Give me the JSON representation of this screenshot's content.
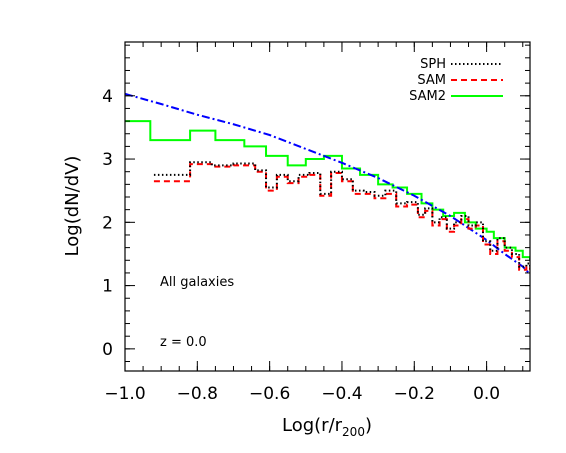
{
  "chart_data": {
    "type": "line",
    "title": "",
    "xlabel": "Log(r/r",
    "xlabel_sub": "200",
    "xlabel_close": ")",
    "ylabel": "Log(dN/dV)",
    "xlim": [
      -1.0,
      0.12
    ],
    "ylim": [
      -0.35,
      4.85
    ],
    "x_ticks": [
      -1.0,
      -0.8,
      -0.6,
      -0.4,
      -0.2,
      0.0
    ],
    "x_tick_labels": [
      "−1.0",
      "−0.8",
      "−0.6",
      "−0.4",
      "−0.2",
      "0.0"
    ],
    "y_ticks": [
      0,
      1,
      2,
      3,
      4
    ],
    "y_tick_labels": [
      "0",
      "1",
      "2",
      "3",
      "4"
    ],
    "grid": false,
    "legend_position": "top-right",
    "annotations": [
      {
        "text": "All galaxies",
        "x": -0.9,
        "y": 1.0
      },
      {
        "text": "z = 0.0",
        "x": -0.9,
        "y": 0.1
      }
    ],
    "series": [
      {
        "name": "SPH",
        "style": "dotted",
        "color": "#000000",
        "step": true,
        "x": [
          -0.92,
          -0.86,
          -0.82,
          -0.76,
          -0.7,
          -0.64,
          -0.61,
          -0.58,
          -0.55,
          -0.52,
          -0.49,
          -0.46,
          -0.43,
          -0.4,
          -0.37,
          -0.34,
          -0.31,
          -0.28,
          -0.25,
          -0.22,
          -0.19,
          -0.17,
          -0.15,
          -0.13,
          -0.11,
          -0.09,
          -0.07,
          -0.05,
          -0.03,
          -0.01,
          0.01,
          0.03,
          0.05,
          0.07,
          0.09,
          0.11,
          0.12
        ],
        "y": [
          2.75,
          2.75,
          2.95,
          2.9,
          2.93,
          2.82,
          2.55,
          2.75,
          2.65,
          2.75,
          2.78,
          2.45,
          2.8,
          2.68,
          2.5,
          2.48,
          2.42,
          2.5,
          2.3,
          2.32,
          2.12,
          2.22,
          2.0,
          2.08,
          1.9,
          2.0,
          2.1,
          1.95,
          2.0,
          1.7,
          1.55,
          1.75,
          1.6,
          1.5,
          1.3,
          1.35,
          1.3
        ]
      },
      {
        "name": "SAM",
        "style": "dashed",
        "color": "#ff0000",
        "step": true,
        "x": [
          -0.92,
          -0.86,
          -0.82,
          -0.76,
          -0.7,
          -0.64,
          -0.61,
          -0.58,
          -0.55,
          -0.52,
          -0.49,
          -0.46,
          -0.43,
          -0.4,
          -0.37,
          -0.34,
          -0.31,
          -0.28,
          -0.25,
          -0.22,
          -0.19,
          -0.17,
          -0.15,
          -0.13,
          -0.11,
          -0.09,
          -0.07,
          -0.05,
          -0.03,
          -0.01,
          0.01,
          0.03,
          0.05,
          0.07,
          0.09,
          0.11,
          0.12
        ],
        "y": [
          2.65,
          2.65,
          2.92,
          2.88,
          2.9,
          2.8,
          2.5,
          2.72,
          2.62,
          2.72,
          2.75,
          2.42,
          2.78,
          2.65,
          2.45,
          2.45,
          2.38,
          2.45,
          2.25,
          2.28,
          2.08,
          2.18,
          1.95,
          2.05,
          1.85,
          1.95,
          2.05,
          1.9,
          1.95,
          1.65,
          1.5,
          1.7,
          1.55,
          1.45,
          1.25,
          1.3,
          1.25
        ]
      },
      {
        "name": "SAM2",
        "style": "solid",
        "color": "#00ff00",
        "step": true,
        "x": [
          -1.0,
          -0.93,
          -0.82,
          -0.75,
          -0.67,
          -0.61,
          -0.55,
          -0.5,
          -0.45,
          -0.4,
          -0.35,
          -0.3,
          -0.26,
          -0.22,
          -0.18,
          -0.15,
          -0.12,
          -0.09,
          -0.06,
          -0.03,
          0.0,
          0.02,
          0.05,
          0.08,
          0.1,
          0.12
        ],
        "y": [
          3.6,
          3.3,
          3.45,
          3.3,
          3.2,
          3.05,
          2.9,
          3.0,
          3.05,
          2.85,
          2.75,
          2.6,
          2.55,
          2.45,
          2.3,
          2.2,
          2.1,
          2.15,
          2.0,
          1.9,
          1.85,
          1.75,
          1.6,
          1.55,
          1.45,
          1.4
        ]
      },
      {
        "name": "",
        "style": "dash-dot",
        "color": "#0000ff",
        "step": false,
        "x": [
          -1.0,
          -0.9,
          -0.8,
          -0.7,
          -0.6,
          -0.5,
          -0.4,
          -0.3,
          -0.2,
          -0.1,
          0.0,
          0.05,
          0.1,
          0.12
        ],
        "y": [
          4.03,
          3.87,
          3.7,
          3.55,
          3.38,
          3.16,
          2.94,
          2.7,
          2.42,
          2.1,
          1.72,
          1.5,
          1.3,
          1.18
        ]
      }
    ]
  }
}
